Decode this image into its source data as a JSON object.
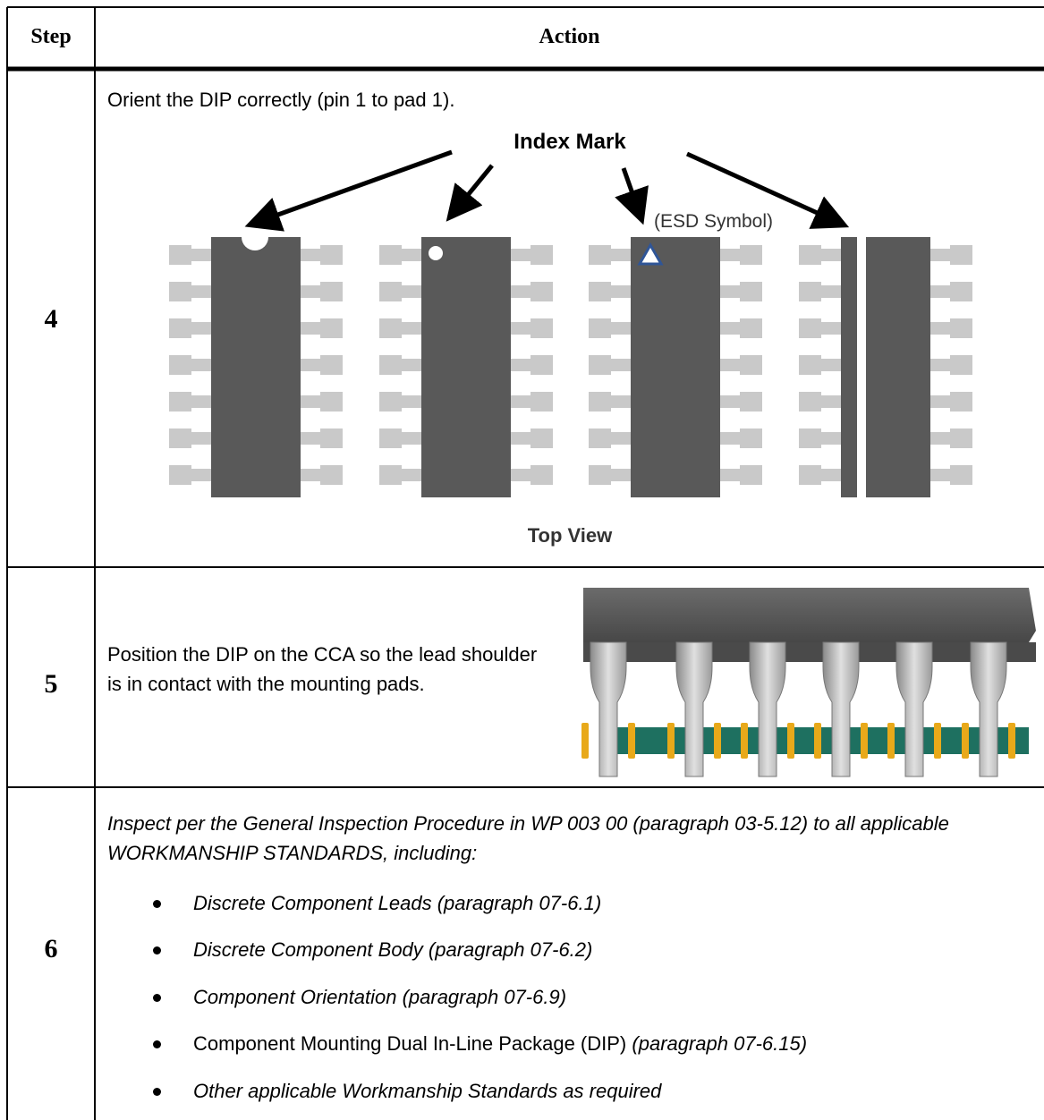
{
  "header": {
    "step": "Step",
    "action": "Action"
  },
  "rows": [
    {
      "step": "4",
      "text": "Orient the DIP correctly (pin 1 to pad 1).",
      "figure": {
        "label": "Index Mark",
        "esd_label": "(ESD Symbol)",
        "caption": "Top View"
      }
    },
    {
      "step": "5",
      "text": "Position the DIP on the CCA so the lead shoulder is in contact with the mounting pads."
    },
    {
      "step": "6",
      "text": "Inspect per the General Inspection Procedure in WP 003 00 (paragraph 03-5.12) to all applicable WORKMANSHIP STANDARDS, including:",
      "bullets": [
        {
          "text": "Discrete Component Leads (paragraph 07-6.1)"
        },
        {
          "text": "Discrete Component Body (paragraph 07-6.2)"
        },
        {
          "text": "Component Orientation (paragraph 07-6.9)"
        },
        {
          "plain": "Component Mounting Dual In-Line Package (DIP)",
          "italic": "(paragraph 07-6.15)"
        },
        {
          "text": "Other applicable Workmanship Standards as required"
        }
      ]
    }
  ]
}
